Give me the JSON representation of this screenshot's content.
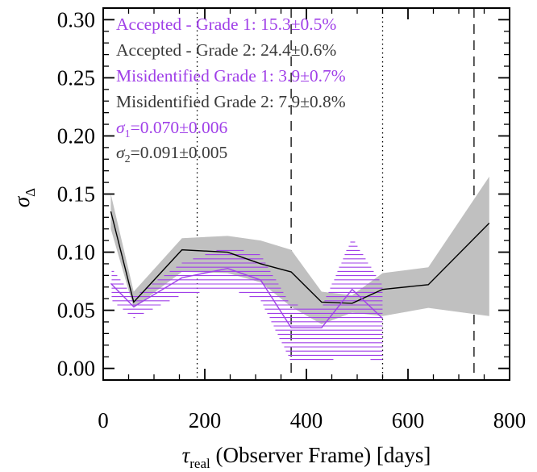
{
  "chart_data": {
    "type": "line",
    "x_axis": {
      "range": [
        0,
        800
      ],
      "ticks": [
        0,
        200,
        400,
        600,
        800
      ],
      "tick_labels": [
        "0",
        "200",
        "400",
        "600",
        "800"
      ],
      "label_main": "τ",
      "label_sub": "real",
      "label_rest": " (Observer Frame) [days]"
    },
    "y_axis": {
      "range": [
        -0.01,
        0.31
      ],
      "ticks": [
        0.0,
        0.05,
        0.1,
        0.15,
        0.2,
        0.25,
        0.3
      ],
      "tick_labels": [
        "0.00",
        "0.05",
        "0.10",
        "0.15",
        "0.20",
        "0.25",
        "0.30"
      ],
      "label_main": "σ",
      "label_sub": "Δ"
    },
    "colors": {
      "grade1": "#a040e8",
      "grade2": "#3a3a3a",
      "band2": "#c0c0c0",
      "axis": "#000000"
    },
    "legend": [
      {
        "text": "Accepted - Grade 1: 15.3±0.5%",
        "color_key": "grade1"
      },
      {
        "text": "Accepted - Grade 2: 24.4±0.6%",
        "color_key": "grade2"
      },
      {
        "text": "Misidentified Grade 1: 3.9±0.7%",
        "color_key": "grade1"
      },
      {
        "text": "Misidentified Grade 2: 7.9±0.8%",
        "color_key": "grade2"
      },
      {
        "symbol": "σ",
        "sub": "1",
        "value": "=0.070±0.006",
        "color_key": "grade1"
      },
      {
        "symbol": "σ",
        "sub": "2",
        "value": "=0.091±0.005",
        "color_key": "grade2"
      }
    ],
    "series": [
      {
        "color_key": "grade2",
        "band_style": "solid",
        "x": [
          15,
          60,
          155,
          245,
          310,
          370,
          430,
          490,
          550,
          640,
          760
        ],
        "y": [
          0.135,
          0.057,
          0.102,
          0.1,
          0.09,
          0.083,
          0.057,
          0.056,
          0.068,
          0.072,
          0.125
        ],
        "upper": [
          0.15,
          0.066,
          0.112,
          0.114,
          0.11,
          0.102,
          0.066,
          0.063,
          0.082,
          0.087,
          0.165
        ],
        "lower": [
          0.12,
          0.052,
          0.083,
          0.082,
          0.074,
          0.053,
          0.038,
          0.048,
          0.045,
          0.052,
          0.045
        ]
      },
      {
        "color_key": "grade1",
        "band_style": "hatched",
        "x": [
          15,
          60,
          155,
          245,
          310,
          370,
          430,
          490,
          550
        ],
        "y": [
          0.073,
          0.053,
          0.078,
          0.086,
          0.076,
          0.035,
          0.035,
          0.068,
          0.043
        ],
        "upper": [
          0.087,
          0.062,
          0.091,
          0.105,
          0.098,
          0.055,
          0.053,
          0.113,
          0.072
        ],
        "lower": [
          0.059,
          0.043,
          0.063,
          0.069,
          0.058,
          0.005,
          0.006,
          0.01,
          0.006
        ]
      }
    ],
    "vlines": [
      {
        "x": 185,
        "style": "dotted"
      },
      {
        "x": 370,
        "style": "dashed"
      },
      {
        "x": 550,
        "style": "dotted"
      },
      {
        "x": 730,
        "style": "dashed"
      }
    ],
    "grid": false,
    "legend_placement": "top-left"
  }
}
